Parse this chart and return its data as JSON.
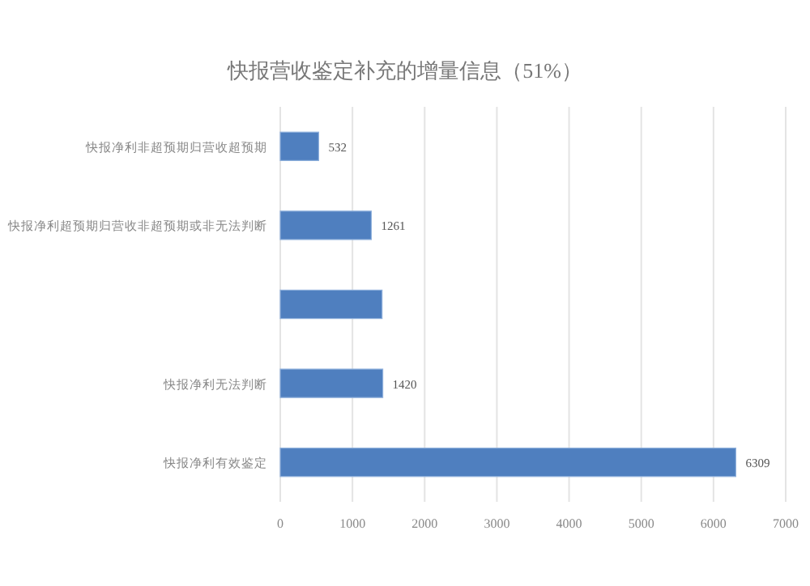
{
  "chart_data": {
    "type": "bar",
    "orientation": "horizontal",
    "title": "快报营收鉴定补充的增量信息（51%）",
    "categories": [
      "快报净利非超预期归营收超预期",
      "快报净利超预期归营收非超预期或非无法判断",
      null,
      "快报净利无法判断",
      "快报净利有效鉴定"
    ],
    "values": [
      532,
      1261,
      1410,
      1420,
      6309
    ],
    "value_labels": [
      "532",
      "1261",
      null,
      "1420",
      "6309"
    ],
    "color": "#4f7fbf",
    "xlim": [
      0,
      7000
    ],
    "xticks": [
      0,
      1000,
      2000,
      3000,
      4000,
      5000,
      6000,
      7000
    ],
    "grid": "x"
  }
}
